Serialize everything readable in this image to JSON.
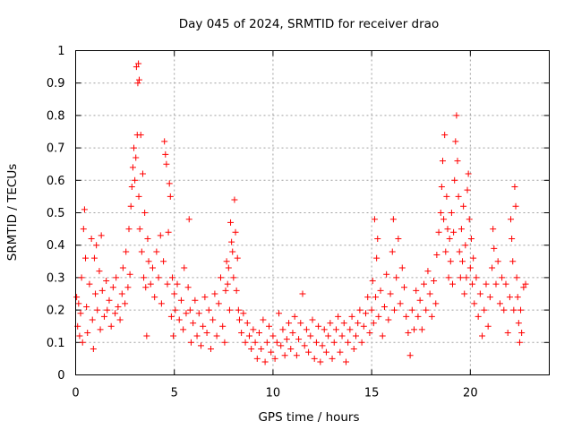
{
  "chart_data": {
    "type": "scatter",
    "title": "Day 045 of 2024, SRMTID for receiver drao",
    "xlabel": "GPS time / hours",
    "ylabel": "SRMTID / TECUs",
    "xlim": [
      0,
      24
    ],
    "ylim": [
      0,
      1
    ],
    "xticks": [
      0,
      5,
      10,
      15,
      20
    ],
    "xtick_labels": [
      "0",
      "5",
      "10",
      "15",
      "20"
    ],
    "yticks": [
      0,
      0.1,
      0.2,
      0.3,
      0.4,
      0.5,
      0.6,
      0.7,
      0.8,
      0.9,
      1
    ],
    "ytick_labels": [
      "0",
      "0.1",
      "0.2",
      "0.3",
      "0.4",
      "0.5",
      "0.6",
      "0.7",
      "0.8",
      "0.9",
      "1"
    ],
    "grid": true,
    "marker": "+",
    "color": "#ff0000",
    "series": [
      {
        "name": "SRMTID",
        "points": [
          [
            0.05,
            0.24
          ],
          [
            0.1,
            0.15
          ],
          [
            0.15,
            0.22
          ],
          [
            0.2,
            0.12
          ],
          [
            0.25,
            0.19
          ],
          [
            0.3,
            0.3
          ],
          [
            0.35,
            0.1
          ],
          [
            0.4,
            0.45
          ],
          [
            0.45,
            0.51
          ],
          [
            0.5,
            0.36
          ],
          [
            0.55,
            0.21
          ],
          [
            0.6,
            0.13
          ],
          [
            0.7,
            0.28
          ],
          [
            0.8,
            0.42
          ],
          [
            0.85,
            0.17
          ],
          [
            0.9,
            0.08
          ],
          [
            0.95,
            0.36
          ],
          [
            1.0,
            0.25
          ],
          [
            1.05,
            0.4
          ],
          [
            1.1,
            0.2
          ],
          [
            1.2,
            0.32
          ],
          [
            1.25,
            0.14
          ],
          [
            1.3,
            0.43
          ],
          [
            1.35,
            0.26
          ],
          [
            1.45,
            0.18
          ],
          [
            1.55,
            0.29
          ],
          [
            1.6,
            0.2
          ],
          [
            1.7,
            0.23
          ],
          [
            1.8,
            0.15
          ],
          [
            1.9,
            0.27
          ],
          [
            2.0,
            0.19
          ],
          [
            2.05,
            0.3
          ],
          [
            2.15,
            0.21
          ],
          [
            2.25,
            0.17
          ],
          [
            2.35,
            0.25
          ],
          [
            2.4,
            0.33
          ],
          [
            2.5,
            0.22
          ],
          [
            2.55,
            0.38
          ],
          [
            2.65,
            0.27
          ],
          [
            2.7,
            0.45
          ],
          [
            2.75,
            0.31
          ],
          [
            2.8,
            0.52
          ],
          [
            2.85,
            0.58
          ],
          [
            2.9,
            0.64
          ],
          [
            2.95,
            0.7
          ],
          [
            3.0,
            0.6
          ],
          [
            3.05,
            0.67
          ],
          [
            3.08,
            0.95
          ],
          [
            3.12,
            0.74
          ],
          [
            3.15,
            0.9
          ],
          [
            3.18,
            0.96
          ],
          [
            3.2,
            0.55
          ],
          [
            3.22,
            0.91
          ],
          [
            3.25,
            0.45
          ],
          [
            3.3,
            0.74
          ],
          [
            3.35,
            0.38
          ],
          [
            3.4,
            0.62
          ],
          [
            3.45,
            0.3
          ],
          [
            3.5,
            0.5
          ],
          [
            3.55,
            0.27
          ],
          [
            3.6,
            0.12
          ],
          [
            3.65,
            0.42
          ],
          [
            3.7,
            0.35
          ],
          [
            3.8,
            0.28
          ],
          [
            3.9,
            0.33
          ],
          [
            4.0,
            0.24
          ],
          [
            4.1,
            0.38
          ],
          [
            4.2,
            0.3
          ],
          [
            4.3,
            0.43
          ],
          [
            4.35,
            0.22
          ],
          [
            4.45,
            0.35
          ],
          [
            4.5,
            0.72
          ],
          [
            4.55,
            0.68
          ],
          [
            4.6,
            0.65
          ],
          [
            4.65,
            0.28
          ],
          [
            4.7,
            0.44
          ],
          [
            4.75,
            0.59
          ],
          [
            4.8,
            0.55
          ],
          [
            4.85,
            0.18
          ],
          [
            4.9,
            0.3
          ],
          [
            4.95,
            0.12
          ],
          [
            5.0,
            0.25
          ],
          [
            5.05,
            0.2
          ],
          [
            5.15,
            0.28
          ],
          [
            5.25,
            0.17
          ],
          [
            5.35,
            0.23
          ],
          [
            5.45,
            0.14
          ],
          [
            5.5,
            0.33
          ],
          [
            5.6,
            0.19
          ],
          [
            5.7,
            0.27
          ],
          [
            5.75,
            0.48
          ],
          [
            5.8,
            0.2
          ],
          [
            5.85,
            0.1
          ],
          [
            5.95,
            0.16
          ],
          [
            6.05,
            0.23
          ],
          [
            6.15,
            0.12
          ],
          [
            6.25,
            0.19
          ],
          [
            6.35,
            0.09
          ],
          [
            6.45,
            0.15
          ],
          [
            6.55,
            0.24
          ],
          [
            6.65,
            0.13
          ],
          [
            6.75,
            0.2
          ],
          [
            6.85,
            0.08
          ],
          [
            6.95,
            0.17
          ],
          [
            7.05,
            0.25
          ],
          [
            7.15,
            0.12
          ],
          [
            7.25,
            0.22
          ],
          [
            7.35,
            0.3
          ],
          [
            7.45,
            0.15
          ],
          [
            7.55,
            0.1
          ],
          [
            7.6,
            0.26
          ],
          [
            7.65,
            0.35
          ],
          [
            7.7,
            0.28
          ],
          [
            7.75,
            0.33
          ],
          [
            7.8,
            0.2
          ],
          [
            7.85,
            0.47
          ],
          [
            7.9,
            0.41
          ],
          [
            7.95,
            0.38
          ],
          [
            8.0,
            0.3
          ],
          [
            8.05,
            0.54
          ],
          [
            8.1,
            0.44
          ],
          [
            8.15,
            0.26
          ],
          [
            8.2,
            0.36
          ],
          [
            8.25,
            0.2
          ],
          [
            8.3,
            0.17
          ],
          [
            8.4,
            0.13
          ],
          [
            8.5,
            0.19
          ],
          [
            8.6,
            0.1
          ],
          [
            8.7,
            0.16
          ],
          [
            8.8,
            0.12
          ],
          [
            8.9,
            0.08
          ],
          [
            9.0,
            0.14
          ],
          [
            9.1,
            0.1
          ],
          [
            9.2,
            0.05
          ],
          [
            9.3,
            0.13
          ],
          [
            9.4,
            0.08
          ],
          [
            9.5,
            0.17
          ],
          [
            9.6,
            0.04
          ],
          [
            9.7,
            0.1
          ],
          [
            9.8,
            0.15
          ],
          [
            9.9,
            0.07
          ],
          [
            10.0,
            0.12
          ],
          [
            10.1,
            0.05
          ],
          [
            10.2,
            0.1
          ],
          [
            10.3,
            0.19
          ],
          [
            10.4,
            0.09
          ],
          [
            10.5,
            0.14
          ],
          [
            10.6,
            0.06
          ],
          [
            10.7,
            0.11
          ],
          [
            10.8,
            0.16
          ],
          [
            10.9,
            0.08
          ],
          [
            11.0,
            0.13
          ],
          [
            11.1,
            0.18
          ],
          [
            11.2,
            0.06
          ],
          [
            11.3,
            0.11
          ],
          [
            11.4,
            0.16
          ],
          [
            11.5,
            0.25
          ],
          [
            11.6,
            0.09
          ],
          [
            11.7,
            0.14
          ],
          [
            11.8,
            0.07
          ],
          [
            11.9,
            0.12
          ],
          [
            12.0,
            0.17
          ],
          [
            12.1,
            0.05
          ],
          [
            12.2,
            0.1
          ],
          [
            12.3,
            0.15
          ],
          [
            12.4,
            0.04
          ],
          [
            12.5,
            0.09
          ],
          [
            12.6,
            0.14
          ],
          [
            12.7,
            0.07
          ],
          [
            12.8,
            0.12
          ],
          [
            12.9,
            0.16
          ],
          [
            13.0,
            0.05
          ],
          [
            13.1,
            0.1
          ],
          [
            13.2,
            0.14
          ],
          [
            13.3,
            0.18
          ],
          [
            13.4,
            0.07
          ],
          [
            13.5,
            0.12
          ],
          [
            13.6,
            0.16
          ],
          [
            13.7,
            0.04
          ],
          [
            13.8,
            0.1
          ],
          [
            13.9,
            0.14
          ],
          [
            14.0,
            0.18
          ],
          [
            14.1,
            0.08
          ],
          [
            14.2,
            0.12
          ],
          [
            14.3,
            0.16
          ],
          [
            14.4,
            0.2
          ],
          [
            14.5,
            0.1
          ],
          [
            14.6,
            0.15
          ],
          [
            14.7,
            0.19
          ],
          [
            14.8,
            0.24
          ],
          [
            14.9,
            0.13
          ],
          [
            15.0,
            0.2
          ],
          [
            15.05,
            0.29
          ],
          [
            15.1,
            0.16
          ],
          [
            15.15,
            0.48
          ],
          [
            15.2,
            0.24
          ],
          [
            15.25,
            0.36
          ],
          [
            15.3,
            0.42
          ],
          [
            15.35,
            0.18
          ],
          [
            15.45,
            0.26
          ],
          [
            15.55,
            0.12
          ],
          [
            15.65,
            0.21
          ],
          [
            15.75,
            0.31
          ],
          [
            15.85,
            0.17
          ],
          [
            15.95,
            0.25
          ],
          [
            16.05,
            0.38
          ],
          [
            16.1,
            0.48
          ],
          [
            16.15,
            0.2
          ],
          [
            16.25,
            0.3
          ],
          [
            16.35,
            0.42
          ],
          [
            16.45,
            0.22
          ],
          [
            16.55,
            0.33
          ],
          [
            16.65,
            0.27
          ],
          [
            16.75,
            0.18
          ],
          [
            16.85,
            0.13
          ],
          [
            16.95,
            0.06
          ],
          [
            17.05,
            0.2
          ],
          [
            17.15,
            0.14
          ],
          [
            17.25,
            0.26
          ],
          [
            17.35,
            0.18
          ],
          [
            17.45,
            0.23
          ],
          [
            17.55,
            0.14
          ],
          [
            17.65,
            0.28
          ],
          [
            17.75,
            0.2
          ],
          [
            17.85,
            0.32
          ],
          [
            17.95,
            0.25
          ],
          [
            18.05,
            0.18
          ],
          [
            18.15,
            0.29
          ],
          [
            18.25,
            0.22
          ],
          [
            18.3,
            0.37
          ],
          [
            18.4,
            0.44
          ],
          [
            18.5,
            0.5
          ],
          [
            18.55,
            0.58
          ],
          [
            18.6,
            0.66
          ],
          [
            18.65,
            0.48
          ],
          [
            18.7,
            0.74
          ],
          [
            18.75,
            0.38
          ],
          [
            18.8,
            0.55
          ],
          [
            18.85,
            0.45
          ],
          [
            18.9,
            0.3
          ],
          [
            18.95,
            0.42
          ],
          [
            19.0,
            0.35
          ],
          [
            19.05,
            0.5
          ],
          [
            19.1,
            0.28
          ],
          [
            19.15,
            0.44
          ],
          [
            19.2,
            0.6
          ],
          [
            19.25,
            0.72
          ],
          [
            19.3,
            0.8
          ],
          [
            19.35,
            0.66
          ],
          [
            19.4,
            0.55
          ],
          [
            19.45,
            0.38
          ],
          [
            19.5,
            0.3
          ],
          [
            19.55,
            0.45
          ],
          [
            19.6,
            0.35
          ],
          [
            19.65,
            0.52
          ],
          [
            19.7,
            0.25
          ],
          [
            19.75,
            0.4
          ],
          [
            19.8,
            0.3
          ],
          [
            19.85,
            0.57
          ],
          [
            19.9,
            0.62
          ],
          [
            19.95,
            0.48
          ],
          [
            20.0,
            0.33
          ],
          [
            20.05,
            0.42
          ],
          [
            20.1,
            0.28
          ],
          [
            20.15,
            0.36
          ],
          [
            20.2,
            0.22
          ],
          [
            20.3,
            0.3
          ],
          [
            20.4,
            0.18
          ],
          [
            20.5,
            0.25
          ],
          [
            20.6,
            0.12
          ],
          [
            20.7,
            0.2
          ],
          [
            20.8,
            0.28
          ],
          [
            20.9,
            0.15
          ],
          [
            21.0,
            0.24
          ],
          [
            21.1,
            0.33
          ],
          [
            21.15,
            0.45
          ],
          [
            21.2,
            0.39
          ],
          [
            21.3,
            0.28
          ],
          [
            21.4,
            0.35
          ],
          [
            21.5,
            0.22
          ],
          [
            21.6,
            0.3
          ],
          [
            21.7,
            0.2
          ],
          [
            21.8,
            0.28
          ],
          [
            21.9,
            0.13
          ],
          [
            22.0,
            0.24
          ],
          [
            22.05,
            0.48
          ],
          [
            22.1,
            0.42
          ],
          [
            22.15,
            0.35
          ],
          [
            22.2,
            0.2
          ],
          [
            22.25,
            0.58
          ],
          [
            22.3,
            0.52
          ],
          [
            22.35,
            0.3
          ],
          [
            22.4,
            0.24
          ],
          [
            22.45,
            0.16
          ],
          [
            22.5,
            0.1
          ],
          [
            22.55,
            0.2
          ],
          [
            22.6,
            0.13
          ],
          [
            22.7,
            0.27
          ],
          [
            22.8,
            0.28
          ]
        ]
      }
    ]
  }
}
